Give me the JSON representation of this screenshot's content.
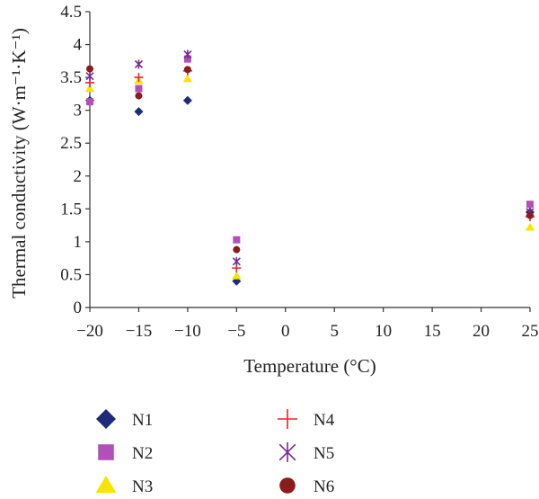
{
  "chart_data": {
    "type": "scatter",
    "xlabel": "Temperature (°C)",
    "ylabel": "Thermal conductivity (W·m⁻¹·K⁻¹)",
    "xlim": [
      -20,
      25
    ],
    "ylim": [
      0,
      4.5
    ],
    "xticks": [
      -20,
      -15,
      -10,
      -5,
      0,
      5,
      10,
      15,
      20,
      25
    ],
    "xtick_labels": [
      "−20",
      "−15",
      "−10",
      "−5",
      "0",
      "5",
      "10",
      "15",
      "20",
      "25"
    ],
    "yticks": [
      0,
      0.5,
      1,
      1.5,
      2,
      2.5,
      3,
      3.5,
      4,
      4.5
    ],
    "ytick_labels": [
      "0",
      "0.5",
      "1",
      "1.5",
      "2",
      "2.5",
      "3",
      "3.5",
      "4",
      "4.5"
    ],
    "grid": false,
    "legend_position": "bottom",
    "series": [
      {
        "name": "N1",
        "marker": "diamond",
        "color": "#1f2a7a",
        "x": [
          -20,
          -15,
          -10,
          -5,
          25
        ],
        "y": [
          3.15,
          2.98,
          3.15,
          0.4,
          1.45
        ]
      },
      {
        "name": "N2",
        "marker": "square",
        "color": "#b34fb8",
        "x": [
          -20,
          -15,
          -10,
          -5,
          25
        ],
        "y": [
          3.13,
          3.33,
          3.78,
          1.03,
          1.57
        ]
      },
      {
        "name": "N3",
        "marker": "triangle",
        "color": "#f5e600",
        "x": [
          -20,
          -15,
          -10,
          -5,
          25
        ],
        "y": [
          3.33,
          3.45,
          3.48,
          0.48,
          1.22
        ]
      },
      {
        "name": "N4",
        "marker": "plus",
        "color": "#e8242b",
        "x": [
          -20,
          -15,
          -10,
          -5,
          25
        ],
        "y": [
          3.42,
          3.5,
          3.6,
          0.6,
          1.38
        ]
      },
      {
        "name": "N5",
        "marker": "star",
        "color": "#7a2a8f",
        "x": [
          -20,
          -15,
          -10,
          -5,
          25
        ],
        "y": [
          3.52,
          3.7,
          3.85,
          0.7,
          1.45
        ]
      },
      {
        "name": "N6",
        "marker": "circle",
        "color": "#8c1c1c",
        "x": [
          -20,
          -15,
          -10,
          -5,
          25
        ],
        "y": [
          3.63,
          3.22,
          3.62,
          0.88,
          1.4
        ]
      }
    ]
  }
}
